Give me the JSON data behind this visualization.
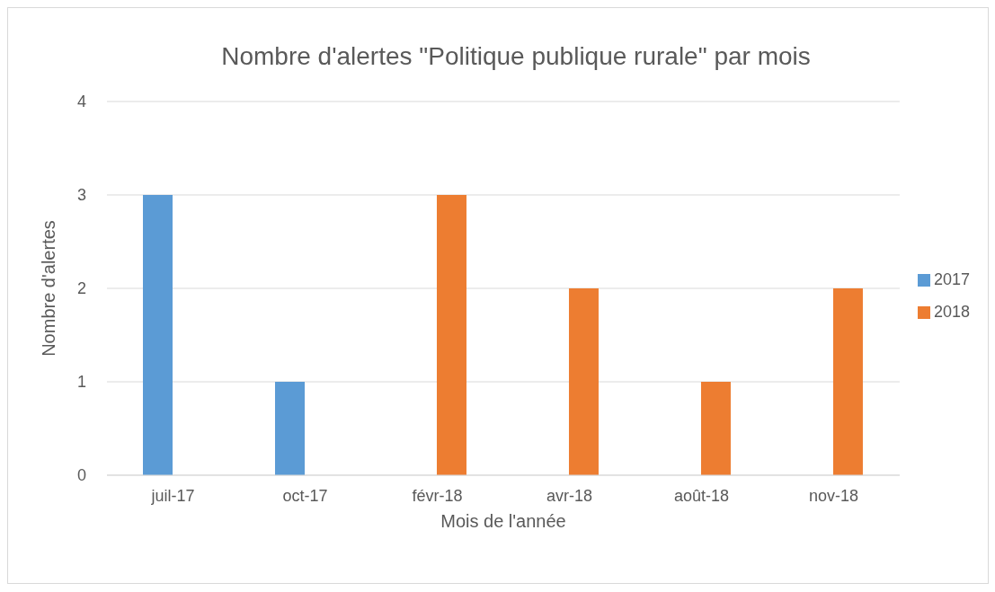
{
  "chart_data": {
    "type": "bar",
    "title": "Nombre d'alertes \"Politique publique rurale\" par mois",
    "xlabel": "Mois de l'année",
    "ylabel": "Nombre d'alertes",
    "categories": [
      "juil-17",
      "oct-17",
      "févr-18",
      "avr-18",
      "août-18",
      "nov-18"
    ],
    "series": [
      {
        "name": "2017",
        "color": "#5b9bd5",
        "values": [
          3,
          1,
          null,
          null,
          null,
          null
        ]
      },
      {
        "name": "2018",
        "color": "#ed7d31",
        "values": [
          null,
          null,
          3,
          2,
          1,
          2
        ]
      }
    ],
    "ylim": [
      0,
      4
    ],
    "yticks": [
      0,
      1,
      2,
      3,
      4
    ],
    "grid": "y",
    "legend": "right"
  }
}
